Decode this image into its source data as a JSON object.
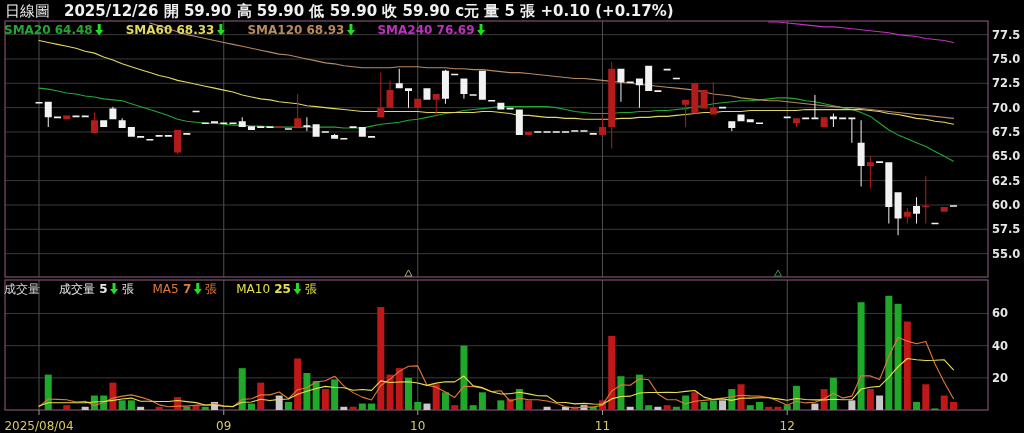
{
  "chart_data": [
    {
      "type": "candlestick",
      "title": "日線圖",
      "subtitle": "2025/12/26 開 59.90 高 59.90 低 59.90 收 59.90 c元 量 5 張 +0.10 (+0.17%)",
      "categories": [
        "2025/08/04",
        null,
        null,
        null,
        null,
        null,
        null,
        null,
        null,
        null,
        null,
        null,
        null,
        null,
        null,
        null,
        null,
        null,
        null,
        null,
        "09",
        null,
        null,
        null,
        null,
        null,
        null,
        null,
        null,
        null,
        null,
        null,
        null,
        null,
        null,
        null,
        null,
        null,
        null,
        null,
        null,
        "10",
        null,
        null,
        null,
        null,
        null,
        null,
        null,
        null,
        null,
        null,
        null,
        null,
        null,
        null,
        null,
        null,
        null,
        null,
        null,
        "11",
        null,
        null,
        null,
        null,
        null,
        null,
        null,
        null,
        null,
        null,
        null,
        null,
        null,
        null,
        null,
        null,
        null,
        null,
        null,
        "12",
        null,
        null,
        null,
        null,
        null,
        null,
        null,
        null,
        null,
        null,
        null,
        null,
        null,
        null,
        null,
        null,
        null,
        null
      ],
      "ohlc": [
        [
          70.5,
          70.5,
          70.5,
          70.5
        ],
        [
          70.6,
          70.6,
          68.0,
          69.0
        ],
        [
          69.0,
          69.0,
          69.0,
          69.0
        ],
        [
          68.8,
          69.2,
          68.8,
          69.2
        ],
        [
          69.1,
          69.1,
          69.1,
          69.1
        ],
        [
          69.1,
          69.1,
          69.1,
          69.1
        ],
        [
          67.4,
          69.5,
          67.4,
          68.7
        ],
        [
          68.7,
          68.7,
          68.0,
          68.0
        ],
        [
          69.9,
          70.1,
          68.8,
          68.8
        ],
        [
          68.7,
          68.9,
          67.9,
          67.9
        ],
        [
          68.0,
          68.0,
          67.0,
          67.0
        ],
        [
          67.0,
          67.0,
          67.0,
          67.0
        ],
        [
          66.7,
          66.7,
          66.7,
          66.7
        ],
        [
          67.1,
          67.1,
          67.1,
          67.1
        ],
        [
          67.1,
          67.1,
          67.1,
          67.1
        ],
        [
          65.4,
          67.7,
          65.2,
          67.7
        ],
        [
          67.3,
          67.3,
          67.3,
          67.3
        ],
        [
          69.6,
          69.6,
          69.6,
          69.6
        ],
        [
          68.4,
          68.4,
          68.4,
          68.4
        ],
        [
          68.6,
          68.6,
          68.4,
          68.4
        ],
        [
          68.4,
          68.4,
          68.4,
          68.4
        ],
        [
          68.4,
          68.4,
          68.4,
          68.4
        ],
        [
          68.6,
          69.0,
          68.0,
          68.0
        ],
        [
          68.1,
          68.1,
          67.7,
          67.7
        ],
        [
          68.0,
          68.0,
          68.0,
          68.0
        ],
        [
          68.0,
          68.0,
          68.0,
          68.0
        ],
        [
          67.9,
          68.1,
          67.9,
          68.1
        ],
        [
          67.8,
          67.8,
          67.8,
          67.8
        ],
        [
          68.0,
          71.4,
          68.0,
          68.9
        ],
        [
          68.2,
          69.0,
          67.6,
          68.0
        ],
        [
          68.3,
          68.3,
          67.0,
          67.0
        ],
        [
          67.5,
          67.5,
          67.5,
          67.5
        ],
        [
          67.2,
          67.3,
          66.8,
          66.8
        ],
        [
          66.8,
          66.8,
          66.8,
          66.8
        ],
        [
          68.0,
          68.0,
          68.0,
          68.0
        ],
        [
          68.0,
          68.0,
          67.0,
          67.0
        ],
        [
          67.0,
          67.0,
          67.0,
          67.0
        ],
        [
          69.0,
          73.6,
          69.0,
          70.0
        ],
        [
          70.0,
          72.8,
          70.0,
          71.8
        ],
        [
          72.5,
          74.0,
          72.0,
          72.0
        ],
        [
          72.0,
          72.0,
          70.0,
          71.7
        ],
        [
          70.0,
          70.9,
          70.0,
          70.9
        ],
        [
          72.0,
          72.0,
          70.8,
          70.8
        ],
        [
          70.8,
          71.4,
          69.1,
          71.4
        ],
        [
          73.8,
          73.9,
          70.4,
          70.9
        ],
        [
          73.4,
          73.4,
          73.4,
          73.4
        ],
        [
          73.0,
          73.0,
          70.9,
          71.4
        ],
        [
          71.3,
          71.3,
          71.3,
          71.3
        ],
        [
          73.8,
          73.8,
          70.8,
          70.8
        ],
        [
          70.7,
          70.7,
          70.7,
          70.7
        ],
        [
          70.5,
          70.5,
          69.8,
          69.8
        ],
        [
          69.9,
          69.9,
          69.9,
          69.9
        ],
        [
          69.8,
          69.8,
          67.2,
          67.2
        ],
        [
          67.2,
          67.5,
          67.2,
          67.5
        ],
        [
          67.5,
          67.5,
          67.5,
          67.5
        ],
        [
          67.5,
          67.5,
          67.5,
          67.5
        ],
        [
          67.5,
          67.5,
          67.5,
          67.5
        ],
        [
          67.5,
          67.5,
          67.5,
          67.5
        ],
        [
          67.6,
          67.6,
          67.6,
          67.6
        ],
        [
          67.6,
          67.6,
          67.6,
          67.6
        ],
        [
          67.3,
          67.3,
          67.3,
          67.3
        ],
        [
          67.2,
          69.0,
          67.2,
          68.0
        ],
        [
          68.0,
          74.7,
          65.8,
          74.0
        ],
        [
          74.0,
          74.0,
          70.6,
          72.6
        ],
        [
          72.6,
          72.6,
          72.6,
          72.6
        ],
        [
          73.0,
          73.0,
          70.0,
          72.3
        ],
        [
          74.3,
          74.3,
          71.7,
          71.7
        ],
        [
          71.7,
          71.7,
          71.7,
          71.7
        ],
        [
          73.9,
          73.9,
          73.9,
          73.9
        ],
        [
          73.0,
          73.0,
          73.0,
          73.0
        ],
        [
          70.3,
          70.8,
          68.0,
          70.8
        ],
        [
          69.4,
          72.5,
          69.4,
          72.5
        ],
        [
          69.9,
          71.8,
          69.9,
          71.8
        ],
        [
          69.3,
          72.6,
          69.3,
          70.0
        ],
        [
          70.0,
          70.0,
          70.0,
          70.0
        ],
        [
          68.6,
          68.6,
          67.6,
          67.9
        ],
        [
          69.3,
          69.3,
          68.6,
          68.6
        ],
        [
          68.8,
          68.8,
          68.5,
          68.5
        ],
        [
          68.4,
          68.4,
          68.4,
          68.4
        ],
        null,
        null,
        [
          69.0,
          69.0,
          69.0,
          69.0
        ],
        [
          68.4,
          68.9,
          68.0,
          68.9
        ],
        [
          68.9,
          68.9,
          68.9,
          68.9
        ],
        [
          68.9,
          71.3,
          68.9,
          68.9
        ],
        [
          68.0,
          69.0,
          68.0,
          69.0
        ],
        [
          69.1,
          69.4,
          68.0,
          68.8
        ],
        [
          68.9,
          68.9,
          68.9,
          68.9
        ],
        [
          68.9,
          68.9,
          66.4,
          68.9
        ],
        [
          66.4,
          68.7,
          61.9,
          64.0
        ],
        [
          64.0,
          65.0,
          61.7,
          64.4
        ],
        [
          64.4,
          64.4,
          64.4,
          64.4
        ],
        [
          64.4,
          64.4,
          58.1,
          59.8
        ],
        [
          61.3,
          61.3,
          56.9,
          58.6
        ],
        [
          58.8,
          59.7,
          58.1,
          59.3
        ],
        [
          59.9,
          60.8,
          58.1,
          59.1
        ],
        [
          59.8,
          63.0,
          58.1,
          59.9
        ],
        [
          58.1,
          58.1,
          58.1,
          58.1
        ],
        [
          59.3,
          59.8,
          59.3,
          59.8
        ],
        [
          59.9,
          59.9,
          59.9,
          59.9
        ]
      ],
      "colors": [
        "#f2f2f2",
        "#f2f2f2",
        "#f2f2f2",
        "#b41c1c",
        "#f2f2f2",
        "#f2f2f2",
        "#b41c1c",
        "#f2f2f2",
        "#f2f2f2",
        "#f2f2f2",
        "#f2f2f2",
        "#f2f2f2",
        "#f2f2f2",
        "#f2f2f2",
        "#f2f2f2",
        "#b41c1c",
        "#f2f2f2",
        "#f2f2f2",
        "#f2f2f2",
        "#f2f2f2",
        "#f2f2f2",
        "#f2f2f2",
        "#f2f2f2",
        "#f2f2f2",
        "#f2f2f2",
        "#f2f2f2",
        "#b41c1c",
        "#f2f2f2",
        "#b41c1c",
        "#f2f2f2",
        "#f2f2f2",
        "#f2f2f2",
        "#f2f2f2",
        "#f2f2f2",
        "#f2f2f2",
        "#f2f2f2",
        "#f2f2f2",
        "#b41c1c",
        "#b41c1c",
        "#f2f2f2",
        "#f2f2f2",
        "#b41c1c",
        "#f2f2f2",
        "#b41c1c",
        "#f2f2f2",
        "#f2f2f2",
        "#f2f2f2",
        "#f2f2f2",
        "#f2f2f2",
        "#f2f2f2",
        "#f2f2f2",
        "#f2f2f2",
        "#f2f2f2",
        "#b41c1c",
        "#f2f2f2",
        "#f2f2f2",
        "#f2f2f2",
        "#f2f2f2",
        "#f2f2f2",
        "#f2f2f2",
        "#f2f2f2",
        "#b41c1c",
        "#b41c1c",
        "#f2f2f2",
        "#f2f2f2",
        "#f2f2f2",
        "#f2f2f2",
        "#f2f2f2",
        "#f2f2f2",
        "#f2f2f2",
        "#b41c1c",
        "#b41c1c",
        "#b41c1c",
        "#b41c1c",
        "#f2f2f2",
        "#f2f2f2",
        "#f2f2f2",
        "#f2f2f2",
        "#f2f2f2",
        null,
        null,
        "#f2f2f2",
        "#b41c1c",
        "#f2f2f2",
        "#f2f2f2",
        "#b41c1c",
        "#f2f2f2",
        "#f2f2f2",
        "#f2f2f2",
        "#f2f2f2",
        "#b41c1c",
        "#f2f2f2",
        "#f2f2f2",
        "#f2f2f2",
        "#b41c1c",
        "#f2f2f2",
        "#b41c1c",
        "#f2f2f2",
        "#b41c1c",
        "#f2f2f2"
      ],
      "series": [
        {
          "type": "line",
          "name": "SMA20 64.48",
          "color": "#22a832",
          "values": [
            72.0,
            71.9,
            71.7,
            71.5,
            71.4,
            71.2,
            71.1,
            70.9,
            70.8,
            70.7,
            70.4,
            70.1,
            69.8,
            69.5,
            69.2,
            68.8,
            68.6,
            68.5,
            68.4,
            68.4,
            68.3,
            68.2,
            68.2,
            68.1,
            68.1,
            68.0,
            68.0,
            68.0,
            68.0,
            68.0,
            68.0,
            68.0,
            68.0,
            67.9,
            67.9,
            67.9,
            68.1,
            68.3,
            68.4,
            68.5,
            68.7,
            68.8,
            69.0,
            69.2,
            69.4,
            69.5,
            69.7,
            69.8,
            69.9,
            70.0,
            70.1,
            70.1,
            70.1,
            70.1,
            70.1,
            70.1,
            70.0,
            69.8,
            69.6,
            69.5,
            69.4,
            69.4,
            69.4,
            69.5,
            69.5,
            69.6,
            69.6,
            69.7,
            69.7,
            69.8,
            69.9,
            70.1,
            70.2,
            70.4,
            70.5,
            70.6,
            70.7,
            70.7,
            70.8,
            70.9,
            71.0,
            71.0,
            70.9,
            70.7,
            70.6,
            70.4,
            70.2,
            70.0,
            69.8,
            69.5,
            69.1,
            68.4,
            67.7,
            67.2,
            66.8,
            66.4,
            66.0,
            65.5,
            65.0,
            64.5
          ]
        },
        {
          "type": "line",
          "name": "SMA60 68.33",
          "color": "#e0d860",
          "values": [
            76.9,
            76.7,
            76.5,
            76.3,
            76.1,
            75.8,
            75.6,
            75.2,
            74.9,
            74.5,
            74.2,
            73.9,
            73.6,
            73.3,
            73.1,
            72.8,
            72.6,
            72.4,
            72.2,
            72.0,
            71.8,
            71.6,
            71.3,
            71.1,
            70.9,
            70.8,
            70.6,
            70.5,
            70.4,
            70.2,
            70.1,
            70.0,
            69.9,
            69.8,
            69.7,
            69.6,
            69.6,
            69.6,
            69.6,
            69.6,
            69.6,
            69.6,
            69.5,
            69.5,
            69.5,
            69.5,
            69.5,
            69.5,
            69.6,
            69.6,
            69.5,
            69.4,
            69.2,
            69.2,
            69.1,
            69.0,
            69.0,
            68.9,
            68.9,
            68.8,
            68.8,
            68.8,
            68.8,
            68.9,
            68.9,
            69.0,
            69.0,
            69.1,
            69.1,
            69.2,
            69.3,
            69.4,
            69.5,
            69.5,
            69.6,
            69.6,
            69.6,
            69.7,
            69.7,
            69.7,
            69.7,
            69.7,
            69.7,
            69.8,
            69.8,
            69.8,
            69.8,
            69.8,
            69.8,
            69.8,
            69.7,
            69.6,
            69.4,
            69.3,
            69.1,
            68.9,
            68.8,
            68.6,
            68.5,
            68.3
          ]
        },
        {
          "type": "line",
          "name": "SMA120 68.93",
          "color": "#b88a60",
          "values": [
            null,
            null,
            null,
            null,
            null,
            null,
            null,
            null,
            null,
            null,
            null,
            null,
            78.7,
            78.4,
            78.1,
            77.8,
            77.5,
            77.3,
            77.1,
            76.9,
            76.7,
            76.5,
            76.3,
            76.1,
            75.9,
            75.7,
            75.5,
            75.4,
            75.2,
            75.0,
            74.8,
            74.6,
            74.5,
            74.3,
            74.2,
            74.1,
            74.1,
            74.1,
            74.1,
            74.2,
            74.2,
            74.2,
            74.1,
            74.1,
            74.1,
            74.0,
            74.0,
            73.9,
            73.9,
            73.8,
            73.7,
            73.6,
            73.6,
            73.5,
            73.4,
            73.3,
            73.2,
            73.1,
            73.0,
            73.0,
            72.9,
            72.8,
            72.7,
            72.6,
            72.5,
            72.4,
            72.3,
            72.2,
            72.1,
            72.0,
            71.9,
            71.8,
            71.6,
            71.4,
            71.3,
            71.2,
            71.0,
            70.9,
            70.8,
            70.7,
            70.7,
            70.6,
            70.5,
            70.4,
            70.3,
            70.2,
            70.1,
            70.0,
            70.0,
            69.9,
            69.8,
            69.7,
            69.6,
            69.5,
            69.4,
            69.3,
            69.2,
            69.1,
            69.0,
            68.9
          ]
        },
        {
          "type": "line",
          "name": "SMA240 76.69",
          "color": "#c030c0",
          "values": [
            null,
            null,
            null,
            null,
            null,
            null,
            null,
            null,
            null,
            null,
            null,
            null,
            null,
            null,
            null,
            null,
            null,
            null,
            null,
            null,
            null,
            null,
            null,
            null,
            null,
            null,
            null,
            null,
            null,
            null,
            null,
            null,
            null,
            null,
            null,
            null,
            null,
            null,
            null,
            null,
            null,
            null,
            null,
            null,
            null,
            null,
            null,
            null,
            null,
            null,
            null,
            null,
            null,
            null,
            null,
            null,
            null,
            null,
            null,
            null,
            null,
            null,
            null,
            null,
            null,
            null,
            null,
            null,
            null,
            null,
            null,
            null,
            null,
            null,
            null,
            null,
            null,
            null,
            null,
            78.8,
            78.8,
            78.7,
            78.6,
            78.5,
            78.4,
            78.3,
            78.3,
            78.2,
            78.1,
            78.0,
            77.9,
            77.8,
            77.7,
            77.5,
            77.4,
            77.3,
            77.1,
            77.0,
            76.9,
            76.7
          ]
        },
        {
          "type": "scatter",
          "marker": "triangle",
          "color": "#b0a870",
          "values": [
            null,
            null,
            null,
            null,
            null,
            null,
            null,
            null,
            null,
            null,
            null,
            null,
            null,
            null,
            null,
            null,
            null,
            null,
            null,
            null,
            null,
            null,
            null,
            null,
            null,
            null,
            null,
            null,
            null,
            null,
            null,
            null,
            null,
            null,
            null,
            null,
            null,
            null,
            null,
            null,
            52.9,
            null,
            null,
            null,
            null,
            null,
            null,
            null,
            null,
            null,
            null,
            null,
            null,
            null,
            null,
            null,
            null,
            null,
            null,
            null,
            null,
            null,
            null,
            null,
            null,
            null,
            null,
            null,
            null,
            null,
            null,
            null,
            null,
            null,
            null,
            null,
            null,
            null,
            null,
            null,
            null,
            null,
            null,
            null,
            null,
            null,
            null,
            null,
            null,
            null,
            null,
            null,
            null,
            null,
            null,
            null,
            null,
            null,
            null,
            null
          ]
        },
        {
          "type": "scatter",
          "marker": "triangle",
          "color": "#3a9050",
          "values": [
            null,
            null,
            null,
            null,
            null,
            null,
            null,
            null,
            null,
            null,
            null,
            null,
            null,
            null,
            null,
            null,
            null,
            null,
            null,
            null,
            null,
            null,
            null,
            null,
            null,
            null,
            null,
            null,
            null,
            null,
            null,
            null,
            null,
            null,
            null,
            null,
            null,
            null,
            null,
            null,
            null,
            null,
            null,
            null,
            null,
            null,
            null,
            null,
            null,
            null,
            null,
            null,
            null,
            null,
            null,
            null,
            null,
            null,
            null,
            null,
            null,
            null,
            null,
            null,
            null,
            null,
            null,
            null,
            null,
            null,
            null,
            null,
            null,
            null,
            null,
            null,
            null,
            null,
            null,
            null,
            52.9,
            null,
            null,
            null,
            null,
            null,
            null,
            null,
            null,
            null,
            null,
            null,
            null,
            null,
            null,
            null,
            null,
            null,
            null,
            null
          ]
        }
      ],
      "ylim": [
        52.6,
        78.9
      ],
      "yticks": [
        {
          "value": 55,
          "label": "55.0"
        },
        57.5,
        {
          "value": 60,
          "label": "60.0"
        },
        62.5,
        {
          "value": 65,
          "label": "65.0"
        },
        67.5,
        {
          "value": 70,
          "label": "70.0"
        },
        72.5,
        {
          "value": 75,
          "label": "75.0"
        },
        77.5
      ],
      "grid": true,
      "legend": "top left",
      "tick_labels": "y"
    },
    {
      "type": "bar",
      "title": "成交量",
      "ylabel": "張",
      "categories": [
        "2025/08/04",
        null,
        null,
        null,
        null,
        null,
        null,
        null,
        null,
        null,
        null,
        null,
        null,
        null,
        null,
        null,
        null,
        null,
        null,
        null,
        "09",
        null,
        null,
        null,
        null,
        null,
        null,
        null,
        null,
        null,
        null,
        null,
        null,
        null,
        null,
        null,
        null,
        null,
        null,
        null,
        null,
        "10",
        null,
        null,
        null,
        null,
        null,
        null,
        null,
        null,
        null,
        null,
        null,
        null,
        null,
        null,
        null,
        null,
        null,
        null,
        null,
        "11",
        null,
        null,
        null,
        null,
        null,
        null,
        null,
        null,
        null,
        null,
        null,
        null,
        null,
        null,
        null,
        null,
        null,
        null,
        null,
        "12",
        null,
        null,
        null,
        null,
        null,
        null,
        null,
        null,
        null,
        null,
        null,
        null,
        null,
        null,
        null,
        null,
        null,
        null
      ],
      "series": [
        {
          "name": "成交量 5",
          "values": [
            null,
            22,
            null,
            3,
            null,
            2,
            9,
            9,
            17,
            6,
            6,
            2,
            null,
            2,
            null,
            8,
            2,
            3,
            2,
            5,
            null,
            null,
            26,
            4,
            17,
            null,
            9,
            5,
            32,
            23,
            18,
            13,
            19,
            2,
            2,
            4,
            4,
            64,
            22,
            26,
            20,
            5,
            4,
            16,
            11,
            3,
            40,
            3,
            11,
            null,
            6,
            7,
            13,
            6,
            null,
            2,
            null,
            2,
            2,
            3,
            2,
            6,
            46,
            21,
            2,
            22,
            3,
            2,
            3,
            2,
            9,
            11,
            5,
            6,
            6,
            13,
            16,
            3,
            5,
            2,
            2,
            3,
            15,
            null,
            4,
            13,
            20,
            null,
            6,
            67,
            13,
            9,
            71,
            66,
            55,
            5,
            16,
            1,
            9,
            5
          ],
          "colors": [
            null,
            "#20a82a",
            null,
            "#c01818",
            null,
            "#c8c8c8",
            "#20a82a",
            "#20a82a",
            "#c01818",
            "#20a82a",
            "#20a82a",
            "#c8c8c8",
            null,
            "#c01818",
            null,
            "#c01818",
            "#20a82a",
            "#c01818",
            "#20a82a",
            "#c8c8c8",
            null,
            null,
            "#20a82a",
            "#20a82a",
            "#c01818",
            null,
            "#c8c8c8",
            "#20a82a",
            "#c01818",
            "#20a82a",
            "#20a82a",
            "#c01818",
            "#20a82a",
            "#c8c8c8",
            "#c01818",
            "#20a82a",
            "#20a82a",
            "#c01818",
            "#c01818",
            "#c01818",
            "#20a82a",
            "#20a82a",
            "#c8c8c8",
            "#c01818",
            "#20a82a",
            "#c01818",
            "#20a82a",
            "#20a82a",
            "#20a82a",
            null,
            "#20a82a",
            "#c01818",
            "#20a82a",
            "#c01818",
            null,
            "#c8c8c8",
            null,
            "#c8c8c8",
            "#c01818",
            "#c8c8c8",
            "#20a82a",
            "#c01818",
            "#c01818",
            "#20a82a",
            "#c8c8c8",
            "#20a82a",
            "#20a82a",
            "#c8c8c8",
            "#c01818",
            "#20a82a",
            "#20a82a",
            "#c01818",
            "#20a82a",
            "#20a82a",
            "#c8c8c8",
            "#20a82a",
            "#c01818",
            "#20a82a",
            "#20a82a",
            "#c01818",
            "#c01818",
            "#20a82a",
            "#20a82a",
            null,
            "#c8c8c8",
            "#c01818",
            "#20a82a",
            null,
            "#c8c8c8",
            "#20a82a",
            "#c01818",
            "#c8c8c8",
            "#20a82a",
            "#20a82a",
            "#c01818",
            "#20a82a",
            "#c01818",
            "#20a82a",
            "#c01818",
            "#c01818"
          ]
        },
        {
          "type": "line",
          "name": "MA5 7",
          "color": "#e07a3a",
          "values": [
            2.0,
            6.8,
            6.6,
            6.4,
            5.0,
            5.4,
            2.8,
            4.6,
            7.4,
            8.6,
            9.4,
            8.0,
            6.2,
            3.2,
            2.0,
            2.4,
            2.4,
            3.0,
            3.0,
            4.0,
            2.4,
            2.0,
            6.6,
            7.0,
            9.4,
            9.4,
            11.2,
            7.0,
            12.6,
            13.8,
            17.4,
            18.2,
            21.0,
            15.0,
            10.8,
            8.0,
            6.2,
            15.2,
            19.2,
            24.0,
            27.2,
            27.4,
            15.4,
            14.2,
            11.2,
            7.8,
            14.8,
            14.6,
            13.6,
            11.4,
            12.0,
            5.4,
            7.4,
            6.4,
            6.4,
            5.6,
            4.2,
            2.0,
            1.2,
            1.8,
            1.8,
            3.0,
            11.8,
            15.6,
            15.4,
            19.4,
            18.8,
            10.0,
            6.4,
            6.4,
            3.8,
            5.4,
            6.0,
            6.6,
            7.4,
            8.2,
            9.2,
            8.8,
            8.6,
            7.8,
            5.6,
            3.0,
            5.4,
            4.4,
            4.8,
            7.0,
            10.4,
            7.4,
            8.6,
            21.2,
            21.2,
            19.0,
            33.2,
            45.2,
            42.8,
            41.2,
            42.6,
            28.6,
            17.2,
            7
          ]
        },
        {
          "type": "line",
          "name": "MA10 25",
          "color": "#e8e04a",
          "values": [
            2.5,
            4.5,
            4.5,
            4.5,
            4.5,
            4.6,
            5.0,
            5.3,
            6.0,
            6.8,
            7.4,
            5.4,
            5.4,
            5.3,
            5.3,
            5.9,
            5.2,
            4.6,
            3.1,
            3.0,
            2.4,
            2.2,
            4.8,
            5.0,
            6.7,
            5.9,
            6.6,
            6.8,
            9.8,
            11.6,
            13.4,
            14.7,
            14.0,
            13.8,
            12.3,
            12.7,
            12.2,
            18.1,
            17.1,
            17.4,
            17.6,
            16.8,
            15.3,
            16.7,
            17.6,
            17.5,
            21.1,
            15.0,
            13.9,
            11.3,
            9.9,
            10.1,
            11.0,
            10.0,
            8.9,
            8.8,
            4.8,
            4.7,
            3.8,
            4.1,
            3.7,
            3.6,
            6.9,
            8.4,
            8.6,
            10.6,
            10.9,
            10.9,
            11.0,
            10.9,
            11.6,
            12.1,
            8.0,
            6.5,
            6.9,
            6.0,
            7.3,
            7.4,
            7.6,
            7.6,
            6.9,
            6.1,
            7.1,
            6.5,
            6.3,
            6.3,
            6.7,
            6.4,
            6.5,
            13.0,
            14.1,
            14.7,
            20.3,
            26.9,
            32.0,
            31.2,
            30.8,
            30.9,
            31.2,
            25
          ]
        }
      ],
      "ylim": [
        0,
        80.8
      ],
      "yticks": [
        20,
        40,
        60
      ],
      "grid": true,
      "legend": "top left"
    }
  ]
}
